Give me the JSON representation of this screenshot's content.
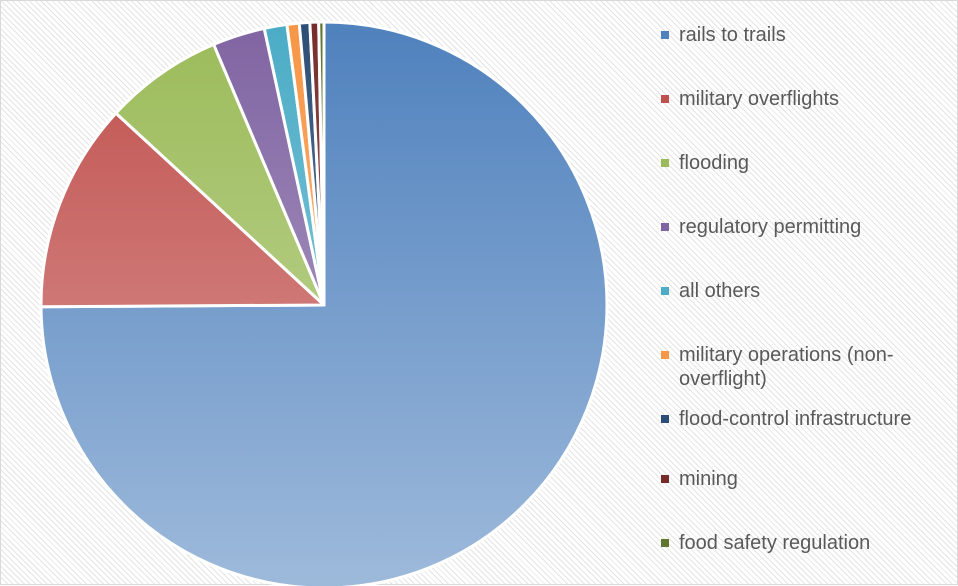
{
  "chart_data": {
    "type": "pie",
    "title": "",
    "start_angle": "12 o'clock",
    "direction": "clockwise",
    "legend_position": "right",
    "slices": [
      {
        "label": "rails to trails",
        "value": 75.2,
        "color": "#4F81BD"
      },
      {
        "label": "military overflights",
        "value": 12.0,
        "color": "#C0504D"
      },
      {
        "label": "flooding",
        "value": 6.8,
        "color": "#9BBB59"
      },
      {
        "label": "regulatory permitting",
        "value": 3.0,
        "color": "#8064A2"
      },
      {
        "label": "all others",
        "value": 1.3,
        "color": "#4BACC6"
      },
      {
        "label": "military operations (non-overflight)",
        "value": 0.7,
        "color": "#F79646"
      },
      {
        "label": "flood-control infrastructure",
        "value": 0.6,
        "color": "#2C4D75"
      },
      {
        "label": "mining",
        "value": 0.5,
        "color": "#772C2A"
      },
      {
        "label": "food safety regulation",
        "value": 0.3,
        "color": "#5F7530"
      }
    ]
  }
}
